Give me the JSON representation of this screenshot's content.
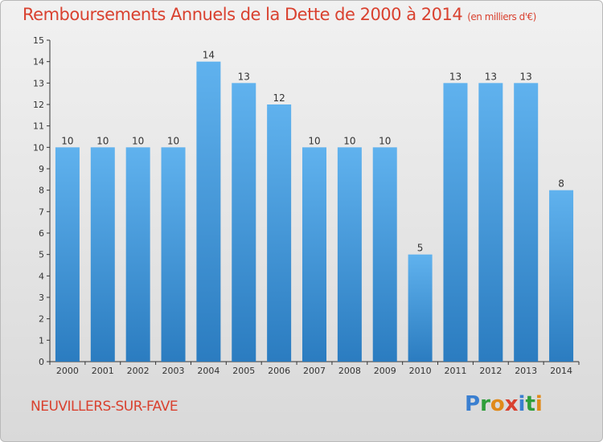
{
  "title": "Remboursements Annuels de la Dette de 2000 à 2014",
  "unit_note": "(en milliers d'€)",
  "place": "NEUVILLERS-SUR-FAVE",
  "logo": {
    "text": "Proxiti",
    "letters": [
      {
        "ch": "P",
        "color": "#3a7fd0"
      },
      {
        "ch": "r",
        "color": "#2f9e3a"
      },
      {
        "ch": "o",
        "color": "#e08a1a"
      },
      {
        "ch": "x",
        "color": "#d9412f"
      },
      {
        "ch": "i",
        "color": "#3a7fd0"
      },
      {
        "ch": "t",
        "color": "#2f9e3a"
      },
      {
        "ch": "i",
        "color": "#e08a1a"
      }
    ]
  },
  "chart_data": {
    "type": "bar",
    "categories": [
      "2000",
      "2001",
      "2002",
      "2003",
      "2004",
      "2005",
      "2006",
      "2007",
      "2008",
      "2009",
      "2010",
      "2011",
      "2012",
      "2013",
      "2014"
    ],
    "values": [
      10,
      10,
      10,
      10,
      14,
      13,
      12,
      10,
      10,
      10,
      5,
      13,
      13,
      13,
      8
    ],
    "y_ticks": [
      0,
      1,
      2,
      3,
      4,
      5,
      6,
      7,
      8,
      9,
      10,
      11,
      12,
      13,
      14,
      15
    ],
    "ylim": [
      0,
      15
    ],
    "grid": false,
    "colors": {
      "bar_light": "#60b2ee",
      "bar_dark": "#2b7cc0",
      "axis": "#333333",
      "title": "#d9412f"
    }
  }
}
